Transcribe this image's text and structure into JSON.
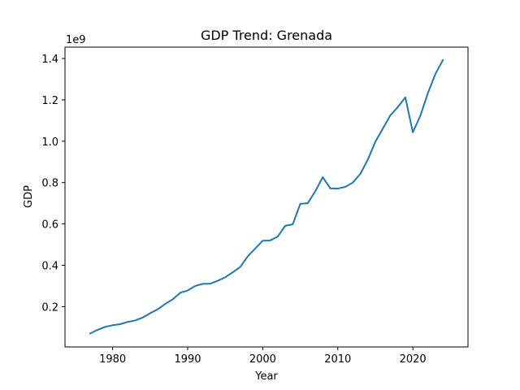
{
  "chart_data": {
    "type": "line",
    "title": "GDP Trend: Grenada",
    "xlabel": "Year",
    "ylabel": "GDP",
    "y_offset_label": "1e9",
    "xlim": [
      1973.65,
      2027.35
    ],
    "ylim": [
      0.005,
      1.455
    ],
    "y_scale_note": "values in units of 1e9",
    "x_ticks": [
      1980,
      1990,
      2000,
      2010,
      2020
    ],
    "x_tick_labels": [
      "1980",
      "1990",
      "2000",
      "2010",
      "2020"
    ],
    "y_ticks": [
      0.2,
      0.4,
      0.6,
      0.8,
      1.0,
      1.2,
      1.4
    ],
    "y_tick_labels": [
      "0.2",
      "0.4",
      "0.6",
      "0.8",
      "1.0",
      "1.2",
      "1.4"
    ],
    "grid": false,
    "line_color": "#1f77b4",
    "series": [
      {
        "x": [
          1977,
          1978,
          1979,
          1980,
          1981,
          1982,
          1983,
          1984,
          1985,
          1986,
          1987,
          1988,
          1989,
          1990,
          1991,
          1992,
          1993,
          1994,
          1995,
          1996,
          1997,
          1998,
          1999,
          2000,
          2001,
          2002,
          2003,
          2004,
          2005,
          2006,
          2007,
          2008,
          2009,
          2010,
          2011,
          2012,
          2013,
          2014,
          2015,
          2016,
          2017,
          2018,
          2019,
          2020,
          2021,
          2022,
          2023,
          2024
        ],
        "y": [
          0.07,
          0.088,
          0.102,
          0.11,
          0.115,
          0.126,
          0.133,
          0.147,
          0.168,
          0.187,
          0.213,
          0.235,
          0.267,
          0.278,
          0.3,
          0.31,
          0.311,
          0.325,
          0.342,
          0.366,
          0.392,
          0.443,
          0.481,
          0.519,
          0.52,
          0.539,
          0.591,
          0.598,
          0.697,
          0.7,
          0.758,
          0.826,
          0.772,
          0.771,
          0.779,
          0.8,
          0.842,
          0.911,
          0.997,
          1.061,
          1.125,
          1.165,
          1.212,
          1.043,
          1.123,
          1.232,
          1.325,
          1.392
        ]
      }
    ]
  }
}
